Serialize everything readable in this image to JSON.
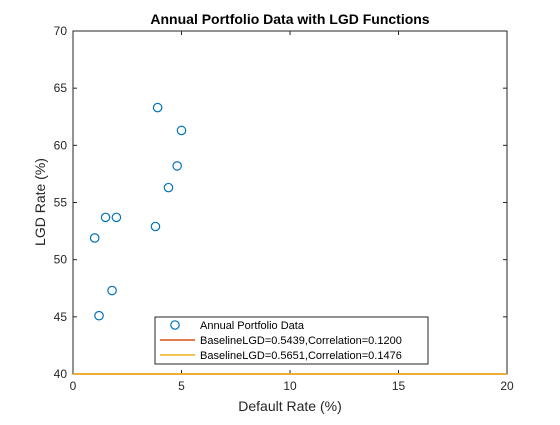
{
  "chart_data": {
    "type": "scatter",
    "title": "Annual Portfolio Data with LGD Functions",
    "xlabel": "Default Rate (%)",
    "ylabel": "LGD Rate (%)",
    "xlim": [
      0,
      20
    ],
    "ylim": [
      40,
      70
    ],
    "xticks": [
      0,
      5,
      10,
      15,
      20
    ],
    "yticks": [
      40,
      45,
      50,
      55,
      60,
      65,
      70
    ],
    "grid": false,
    "legend_position": "bottom-center",
    "series": [
      {
        "name": "Annual Portfolio Data",
        "kind": "scatter",
        "marker": "circle-open",
        "color": "#0072BD",
        "points": [
          {
            "x": 1.0,
            "y": 51.9
          },
          {
            "x": 1.2,
            "y": 45.1
          },
          {
            "x": 1.5,
            "y": 53.7
          },
          {
            "x": 1.8,
            "y": 47.3
          },
          {
            "x": 2.0,
            "y": 53.7
          },
          {
            "x": 3.8,
            "y": 52.9
          },
          {
            "x": 3.9,
            "y": 63.3
          },
          {
            "x": 4.4,
            "y": 56.3
          },
          {
            "x": 4.8,
            "y": 58.2
          },
          {
            "x": 5.0,
            "y": 61.3
          }
        ]
      },
      {
        "name": "BaselineLGD=0.5439,Correlation=0.1200",
        "kind": "line",
        "color": "#D95319",
        "baseline_lgd": 0.5439,
        "correlation": 0.12
      },
      {
        "name": "BaselineLGD=0.5651,Correlation=0.1476",
        "kind": "line",
        "color": "#EDB120",
        "baseline_lgd": 0.5651,
        "correlation": 0.1476
      }
    ]
  }
}
